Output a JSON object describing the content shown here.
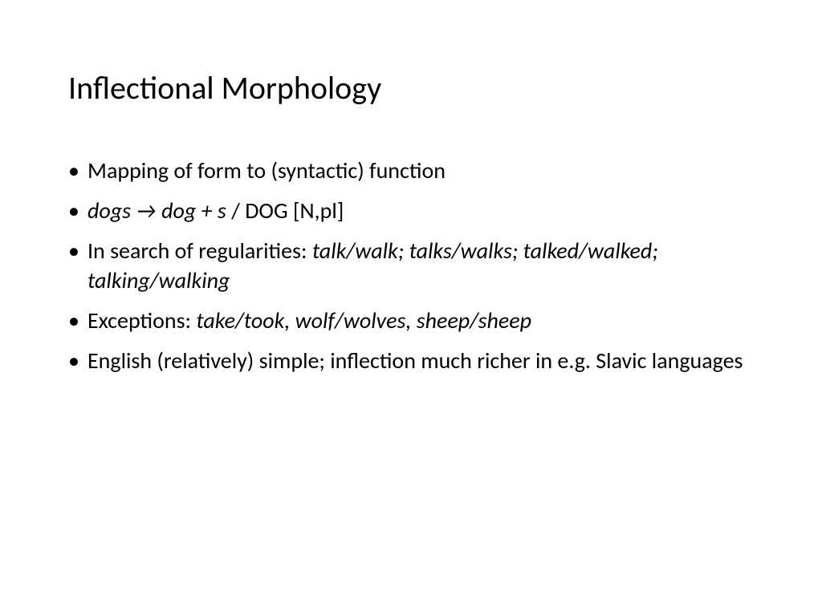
{
  "slide": {
    "title": "Inflectional Morphology",
    "title_fontsize": 40,
    "bullet_fontsize": 28,
    "text_color": "#000000",
    "background_color": "#ffffff",
    "bullets": [
      {
        "segments": [
          {
            "text": "Mapping of form to (syntactic) function",
            "italic": false
          }
        ]
      },
      {
        "segments": [
          {
            "text": "dogs → dog + s",
            "italic": true
          },
          {
            "text": " / DOG [N,pl]",
            "italic": false
          }
        ]
      },
      {
        "segments": [
          {
            "text": "In search of regularities: ",
            "italic": false
          },
          {
            "text": "talk/walk; talks/walks; talked/walked; talking/walking",
            "italic": true
          }
        ]
      },
      {
        "segments": [
          {
            "text": "Exceptions: ",
            "italic": false
          },
          {
            "text": "take/took, wolf/wolves, sheep/sheep",
            "italic": true
          }
        ]
      },
      {
        "segments": [
          {
            "text": "English (relatively) simple; inflection much richer in e.g. Slavic languages",
            "italic": false
          }
        ]
      }
    ]
  }
}
